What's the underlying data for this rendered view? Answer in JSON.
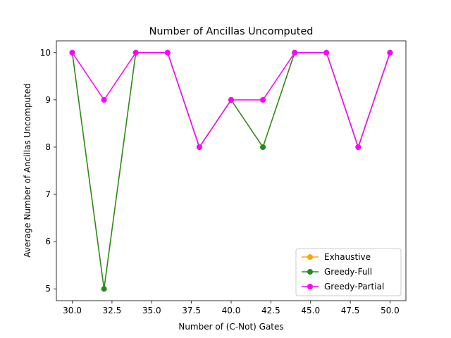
{
  "chart_data": {
    "type": "line",
    "title": "Number of Ancillas Uncomputed",
    "xlabel": "Number of (C-Not) Gates",
    "ylabel": "Average Number of Ancillas Uncomputed",
    "x": [
      30,
      32,
      34,
      36,
      38,
      40,
      42,
      44,
      46,
      48,
      50
    ],
    "xlim": [
      29,
      51
    ],
    "ylim": [
      4.75,
      10.25
    ],
    "xticks": [
      30.0,
      32.5,
      35.0,
      37.5,
      40.0,
      42.5,
      45.0,
      47.5,
      50.0
    ],
    "xtick_labels": [
      "30.0",
      "32.5",
      "35.0",
      "37.5",
      "40.0",
      "42.5",
      "45.0",
      "47.5",
      "50.0"
    ],
    "yticks": [
      5,
      6,
      7,
      8,
      9,
      10
    ],
    "ytick_labels": [
      "5",
      "6",
      "7",
      "8",
      "9",
      "10"
    ],
    "grid": false,
    "legend_position": "lower-right",
    "series": [
      {
        "name": "Exhaustive",
        "color": "#ffa500",
        "values": [
          10,
          5,
          10,
          10,
          8,
          9,
          8,
          10,
          10,
          8,
          10
        ]
      },
      {
        "name": "Greedy-Full",
        "color": "#228b22",
        "values": [
          10,
          5,
          10,
          10,
          8,
          9,
          8,
          10,
          10,
          8,
          10
        ]
      },
      {
        "name": "Greedy-Partial",
        "color": "#ff00ff",
        "values": [
          10,
          9,
          10,
          10,
          8,
          9,
          9,
          10,
          10,
          8,
          10
        ]
      }
    ]
  }
}
